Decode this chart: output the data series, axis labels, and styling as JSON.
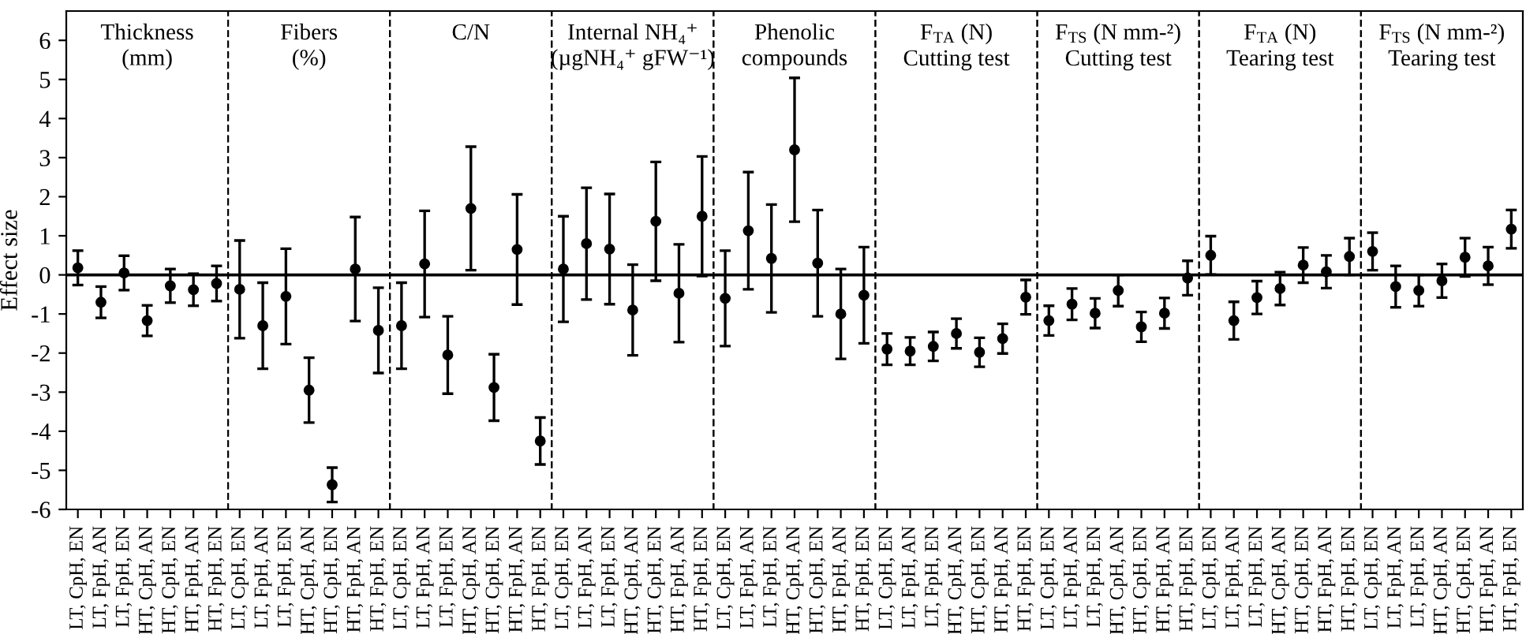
{
  "chart_data": [
    {
      "type": "scatter",
      "title": "Thickness\n(mm)",
      "ylabel": "Effect size",
      "categories": [
        "LT, CpH, EN",
        "LT, FpH, AN",
        "LT, FpH, EN",
        "HT, CpH, AN",
        "HT, CpH, EN",
        "HT, FpH, AN",
        "HT, FpH, EN"
      ],
      "values": [
        0.18,
        -0.7,
        0.05,
        -1.17,
        -0.28,
        -0.38,
        -0.22
      ],
      "errors": [
        0.44,
        0.4,
        0.44,
        0.39,
        0.43,
        0.41,
        0.45
      ],
      "color": "#000000",
      "marker": "circle",
      "ylim": [
        -6,
        6.75
      ],
      "yticks": [
        -6,
        -5,
        -4,
        -3,
        -2,
        -1,
        0,
        1,
        2,
        3,
        4,
        5,
        6
      ],
      "ref_lines": [
        {
          "axis": "y",
          "value": 0
        }
      ]
    },
    {
      "type": "scatter",
      "title": "Fibers\n(%)",
      "categories": [
        "LT, CpH, EN",
        "LT, FpH, AN",
        "LT, FpH, EN",
        "HT, CpH, AN",
        "HT, CpH, EN",
        "HT, FpH, AN",
        "HT, FpH, EN"
      ],
      "values": [
        -0.37,
        -1.3,
        -0.55,
        -2.95,
        -5.37,
        0.15,
        -1.42
      ],
      "errors": [
        1.25,
        1.1,
        1.22,
        0.83,
        0.44,
        1.33,
        1.09
      ],
      "color": "#000000",
      "marker": "circle",
      "ylim": [
        -6,
        6.75
      ],
      "tick_labels": "x",
      "ref_lines": [
        {
          "axis": "y",
          "value": 0
        }
      ]
    },
    {
      "type": "scatter",
      "title": "C/N",
      "categories": [
        "LT, CpH, EN",
        "LT, FpH, AN",
        "LT, FpH, EN",
        "HT, CpH, AN",
        "HT, CpH, EN",
        "HT, FpH, AN",
        "HT, FpH, EN"
      ],
      "values": [
        -1.3,
        0.28,
        -2.05,
        1.7,
        -2.88,
        0.65,
        -4.25
      ],
      "errors": [
        1.1,
        1.36,
        0.99,
        1.58,
        0.85,
        1.41,
        0.6
      ],
      "color": "#000000",
      "marker": "circle",
      "ylim": [
        -6,
        6.75
      ],
      "tick_labels": "x",
      "ref_lines": [
        {
          "axis": "y",
          "value": 0
        }
      ]
    },
    {
      "type": "scatter",
      "title": "Internal NH₄⁺\n(µgNH₄⁺ gFW⁻¹)",
      "categories": [
        "LT, CpH, EN",
        "LT, FpH, AN",
        "LT, FpH, EN",
        "HT, CpH, AN",
        "HT, CpH, EN",
        "HT, FpH, AN",
        "HT, FpH, EN"
      ],
      "values": [
        0.15,
        0.8,
        0.66,
        -0.9,
        1.37,
        -0.47,
        1.5
      ],
      "errors": [
        1.35,
        1.43,
        1.41,
        1.16,
        1.52,
        1.25,
        1.53
      ],
      "color": "#000000",
      "marker": "circle",
      "ylim": [
        -6,
        6.75
      ],
      "tick_labels": "x",
      "ref_lines": [
        {
          "axis": "y",
          "value": 0
        }
      ]
    },
    {
      "type": "scatter",
      "title": "Phenolic\ncompounds",
      "categories": [
        "LT, CpH, EN",
        "LT, FpH, AN",
        "LT, FpH, EN",
        "HT, CpH, AN",
        "HT, CpH, EN",
        "HT, FpH, AN",
        "HT, FpH, EN"
      ],
      "values": [
        -0.6,
        1.13,
        0.42,
        3.2,
        0.3,
        -1.0,
        -0.52
      ],
      "errors": [
        1.22,
        1.5,
        1.38,
        1.84,
        1.36,
        1.15,
        1.23
      ],
      "color": "#000000",
      "marker": "circle",
      "ylim": [
        -6,
        6.75
      ],
      "tick_labels": "x",
      "ref_lines": [
        {
          "axis": "y",
          "value": 0
        }
      ]
    },
    {
      "type": "scatter",
      "title": "F$_{TA}$ (N)\nCutting test",
      "categories": [
        "LT, CpH, EN",
        "LT, FpH, AN",
        "LT, FpH, EN",
        "HT, CpH, AN",
        "HT, CpH, EN",
        "HT, FpH, AN",
        "HT, FpH, EN"
      ],
      "values": [
        -1.9,
        -1.95,
        -1.83,
        -1.5,
        -1.98,
        -1.63,
        -0.57
      ],
      "errors": [
        0.4,
        0.35,
        0.37,
        0.38,
        0.37,
        0.38,
        0.44
      ],
      "color": "#000000",
      "marker": "circle",
      "ylim": [
        -6,
        6.75
      ],
      "tick_labels": "x",
      "ref_lines": [
        {
          "axis": "y",
          "value": 0
        }
      ]
    },
    {
      "type": "scatter",
      "title": "F$_{TS}$ (N mm-²)\nCutting test",
      "categories": [
        "LT, CpH, EN",
        "LT, FpH, AN",
        "LT, FpH, EN",
        "HT, CpH, AN",
        "HT, CpH, EN",
        "HT, FpH, AN",
        "HT, FpH, EN"
      ],
      "values": [
        -1.17,
        -0.75,
        -0.98,
        -0.4,
        -1.33,
        -0.98,
        -0.08
      ],
      "errors": [
        0.38,
        0.4,
        0.38,
        0.4,
        0.38,
        0.39,
        0.44
      ],
      "color": "#000000",
      "marker": "circle",
      "ylim": [
        -6,
        6.75
      ],
      "tick_labels": "x",
      "ref_lines": [
        {
          "axis": "y",
          "value": 0
        }
      ]
    },
    {
      "type": "scatter",
      "title": "F$_{TA}$ (N)\nTearing test",
      "categories": [
        "LT, CpH, EN",
        "LT, FpH, AN",
        "LT, FpH, EN",
        "HT, CpH, AN",
        "HT, CpH, EN",
        "HT, FpH, AN",
        "HT, FpH, EN"
      ],
      "values": [
        0.5,
        -1.17,
        -0.58,
        -0.35,
        0.25,
        0.08,
        0.47
      ],
      "errors": [
        0.49,
        0.48,
        0.42,
        0.42,
        0.45,
        0.42,
        0.47
      ],
      "color": "#000000",
      "marker": "circle",
      "ylim": [
        -6,
        6.75
      ],
      "tick_labels": "x",
      "ref_lines": [
        {
          "axis": "y",
          "value": 0
        }
      ]
    },
    {
      "type": "scatter",
      "title": "F$_{TS}$ (N mm-²)\nTearing test",
      "categories": [
        "LT, CpH, EN",
        "LT, FpH, AN",
        "LT, FpH, EN",
        "HT, CpH, AN",
        "HT, CpH, EN",
        "HT, FpH, AN",
        "HT, FpH, EN"
      ],
      "values": [
        0.6,
        -0.3,
        -0.4,
        -0.15,
        0.45,
        0.23,
        1.17
      ],
      "errors": [
        0.48,
        0.53,
        0.4,
        0.43,
        0.49,
        0.48,
        0.49
      ],
      "color": "#000000",
      "marker": "circle",
      "ylim": [
        -6,
        6.75
      ],
      "tick_labels": "x",
      "ref_lines": [
        {
          "axis": "y",
          "value": 0
        }
      ]
    }
  ]
}
